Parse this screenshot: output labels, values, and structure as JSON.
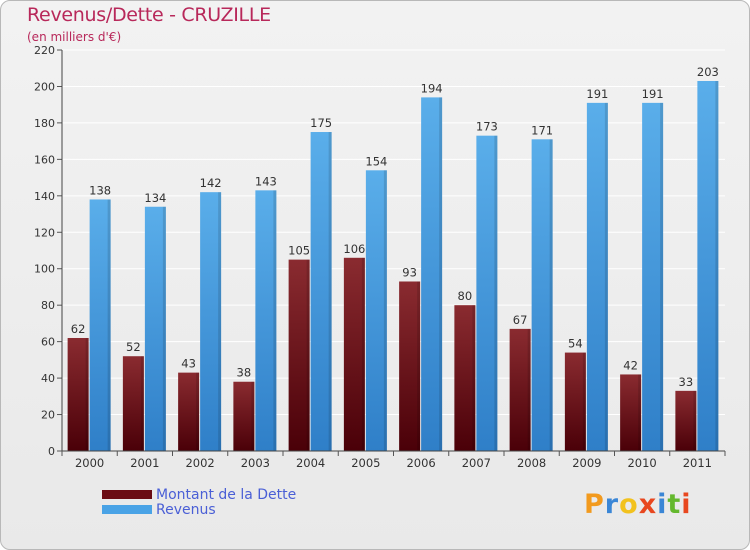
{
  "header": {
    "title": "Revenus/Dette - CRUZILLE",
    "subtitle": "(en milliers d'€)"
  },
  "legend": {
    "items": [
      {
        "label": "Montant de la Dette",
        "color": "#6b0d14"
      },
      {
        "label": "Revenus",
        "color": "#4aa3e6"
      }
    ]
  },
  "logo": {
    "letters": [
      "P",
      "r",
      "o",
      "x",
      "i",
      "t",
      "i"
    ],
    "colors": [
      "#f29a1e",
      "#3a86d6",
      "#f2c21e",
      "#e8471f",
      "#3a86d6",
      "#64b82e",
      "#e8471f"
    ]
  },
  "chart_data": {
    "type": "bar",
    "title": "Revenus/Dette - CRUZILLE",
    "ylabel": "(en milliers d'€)",
    "xlabel": "",
    "categories": [
      "2000",
      "2001",
      "2002",
      "2003",
      "2004",
      "2005",
      "2006",
      "2007",
      "2008",
      "2009",
      "2010",
      "2011"
    ],
    "series": [
      {
        "name": "Montant de la Dette",
        "values": [
          62,
          52,
          43,
          38,
          105,
          106,
          93,
          80,
          67,
          54,
          42,
          33
        ]
      },
      {
        "name": "Revenus",
        "values": [
          138,
          134,
          142,
          143,
          175,
          154,
          194,
          173,
          171,
          191,
          191,
          203
        ]
      }
    ],
    "ylim": [
      0,
      220
    ],
    "yticks": [
      0,
      20,
      40,
      60,
      80,
      100,
      120,
      140,
      160,
      180,
      200,
      220
    ],
    "grid": true,
    "legend_position": "bottom-left"
  }
}
